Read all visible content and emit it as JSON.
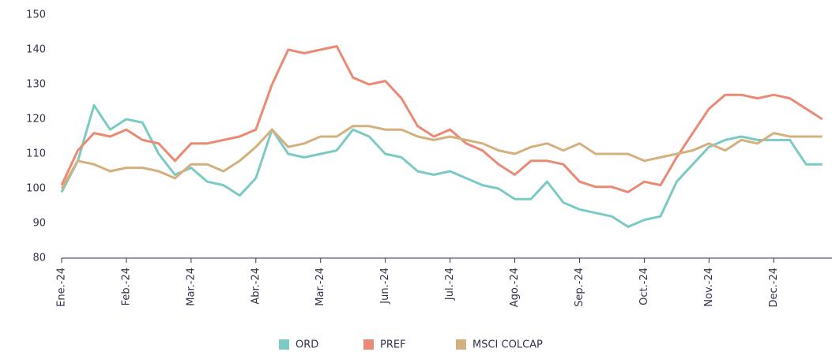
{
  "chart_data": {
    "type": "line",
    "x": [
      0,
      0.25,
      0.5,
      0.75,
      1,
      1.25,
      1.5,
      1.75,
      2,
      2.25,
      2.5,
      2.75,
      3,
      3.25,
      3.5,
      3.75,
      4,
      4.25,
      4.5,
      4.75,
      5,
      5.25,
      5.5,
      5.75,
      6,
      6.25,
      6.5,
      6.75,
      7,
      7.25,
      7.5,
      7.75,
      8,
      8.25,
      8.5,
      8.75,
      9,
      9.25,
      9.5,
      9.75,
      10,
      10.25,
      10.5,
      10.75,
      11,
      11.25,
      11.5,
      11.75
    ],
    "series": [
      {
        "name": "ORD",
        "color": "#7ccac4",
        "values": [
          99,
          108,
          124,
          117,
          120,
          119,
          110,
          104,
          106,
          102,
          101,
          98,
          103,
          117,
          110,
          109,
          110,
          111,
          117,
          115,
          110,
          109,
          105,
          104,
          105,
          103,
          101,
          100,
          97,
          97,
          102,
          96,
          94,
          93,
          92,
          89,
          91,
          92,
          102,
          107,
          112,
          114,
          115,
          114,
          114,
          114,
          107,
          107
        ]
      },
      {
        "name": "PREF",
        "color": "#ea8a75",
        "values": [
          101,
          111,
          116,
          115,
          117,
          114,
          113,
          108,
          113,
          113,
          114,
          115,
          117,
          130,
          140,
          139,
          140,
          141,
          132,
          130,
          131,
          126,
          118,
          115,
          117,
          113,
          111,
          107,
          104,
          108,
          108,
          107,
          102,
          100.5,
          100.5,
          99,
          102,
          101,
          109,
          116,
          123,
          127,
          127,
          126,
          127,
          126,
          123,
          120
        ]
      },
      {
        "name": "MSCI COLCAP",
        "color": "#d4b07f",
        "values": [
          100,
          108,
          107,
          105,
          106,
          106,
          105,
          103,
          107,
          107,
          105,
          108,
          112,
          117,
          112,
          113,
          115,
          115,
          118,
          118,
          117,
          117,
          115,
          114,
          115,
          114,
          113,
          111,
          110,
          112,
          113,
          111,
          113,
          110,
          110,
          110,
          108,
          109,
          110,
          111,
          113,
          111,
          114,
          113,
          116,
          115,
          115,
          115
        ]
      }
    ],
    "xlim": [
      0,
      11.9
    ],
    "xticks": [
      {
        "value": 0,
        "label": "Ene.-24"
      },
      {
        "value": 1,
        "label": "Feb.-24"
      },
      {
        "value": 2,
        "label": "Mar.-24"
      },
      {
        "value": 3,
        "label": "Abr.-24"
      },
      {
        "value": 4,
        "label": "Mar.-24"
      },
      {
        "value": 5,
        "label": "Jun.-24"
      },
      {
        "value": 6,
        "label": "Jul.-24"
      },
      {
        "value": 7,
        "label": "Ago.-24"
      },
      {
        "value": 8,
        "label": "Sep.-24"
      },
      {
        "value": 9,
        "label": "Oct.-24"
      },
      {
        "value": 10,
        "label": "Nov.-24"
      },
      {
        "value": 11,
        "label": "Dec.-24"
      }
    ],
    "ylim": [
      80,
      150
    ],
    "yticks": [
      80,
      90,
      100,
      110,
      120,
      130,
      140,
      150
    ],
    "grid": false,
    "legend": "bottom"
  }
}
